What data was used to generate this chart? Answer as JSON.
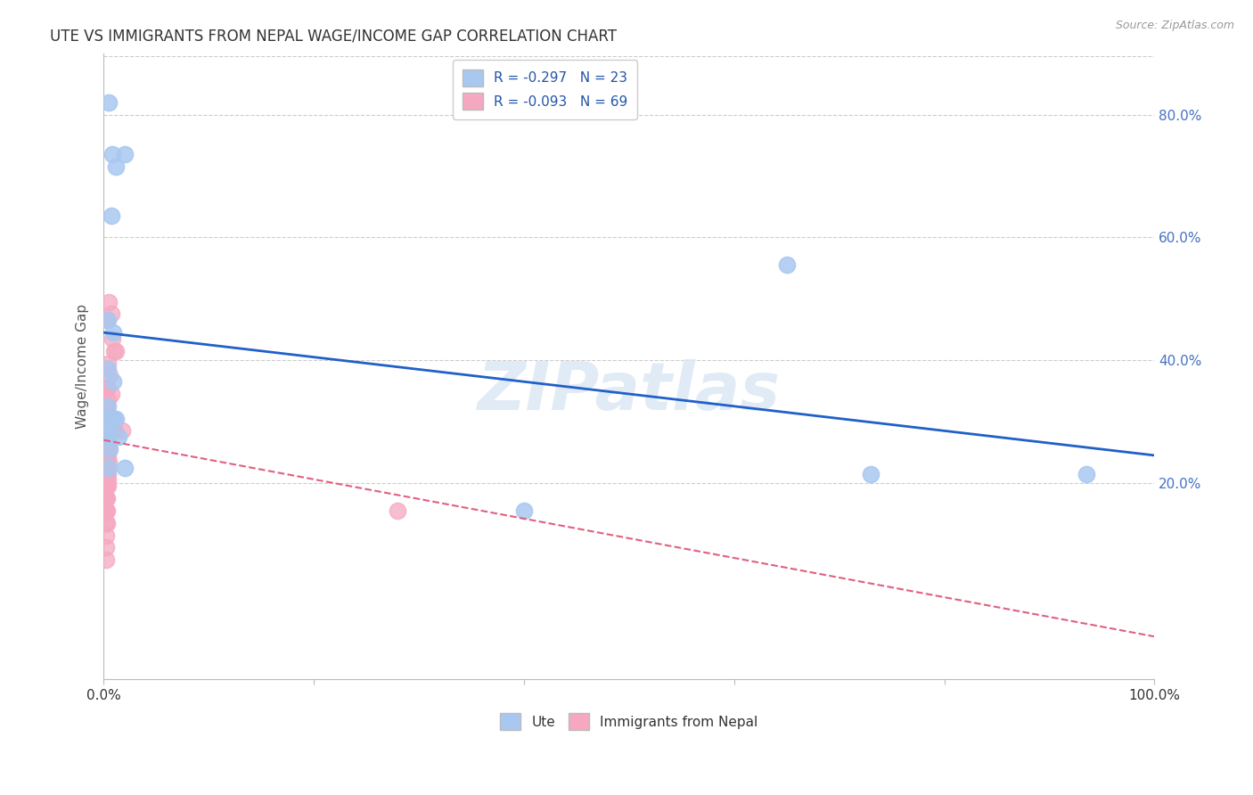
{
  "title": "UTE VS IMMIGRANTS FROM NEPAL WAGE/INCOME GAP CORRELATION CHART",
  "source": "Source: ZipAtlas.com",
  "ylabel": "Wage/Income Gap",
  "watermark": "ZIPatlas",
  "blue_label": "Ute",
  "pink_label": "Immigrants from Nepal",
  "blue_R": -0.297,
  "blue_N": 23,
  "pink_R": -0.093,
  "pink_N": 69,
  "xlim": [
    0.0,
    1.0
  ],
  "ylim": [
    -0.12,
    0.9
  ],
  "xticks": [
    0.0,
    0.2,
    0.4,
    0.6,
    0.8,
    1.0
  ],
  "xticklabels": [
    "0.0%",
    "",
    "",
    "",
    "",
    "100.0%"
  ],
  "yticks": [
    0.2,
    0.4,
    0.6,
    0.8
  ],
  "yticklabels": [
    "20.0%",
    "40.0%",
    "60.0%",
    "80.0%"
  ],
  "blue_color": "#A8C8F0",
  "pink_color": "#F5A8C0",
  "blue_line_color": "#2060C8",
  "pink_line_color": "#E06080",
  "background": "#FFFFFF",
  "grid_color": "#CCCCCC",
  "blue_line": [
    [
      0.0,
      0.445
    ],
    [
      1.0,
      0.245
    ]
  ],
  "pink_line": [
    [
      0.0,
      0.27
    ],
    [
      1.0,
      -0.05
    ]
  ],
  "blue_points": [
    [
      0.005,
      0.82
    ],
    [
      0.008,
      0.735
    ],
    [
      0.012,
      0.715
    ],
    [
      0.02,
      0.735
    ],
    [
      0.007,
      0.635
    ],
    [
      0.004,
      0.465
    ],
    [
      0.009,
      0.445
    ],
    [
      0.004,
      0.385
    ],
    [
      0.009,
      0.365
    ],
    [
      0.004,
      0.325
    ],
    [
      0.005,
      0.305
    ],
    [
      0.008,
      0.305
    ],
    [
      0.012,
      0.305
    ],
    [
      0.004,
      0.285
    ],
    [
      0.004,
      0.275
    ],
    [
      0.014,
      0.275
    ],
    [
      0.006,
      0.255
    ],
    [
      0.005,
      0.225
    ],
    [
      0.02,
      0.225
    ],
    [
      0.65,
      0.555
    ],
    [
      0.4,
      0.155
    ],
    [
      0.73,
      0.215
    ],
    [
      0.935,
      0.215
    ]
  ],
  "pink_points": [
    [
      0.005,
      0.495
    ],
    [
      0.007,
      0.475
    ],
    [
      0.003,
      0.465
    ],
    [
      0.008,
      0.435
    ],
    [
      0.01,
      0.415
    ],
    [
      0.012,
      0.415
    ],
    [
      0.004,
      0.395
    ],
    [
      0.006,
      0.375
    ],
    [
      0.003,
      0.355
    ],
    [
      0.004,
      0.355
    ],
    [
      0.007,
      0.345
    ],
    [
      0.004,
      0.335
    ],
    [
      0.002,
      0.325
    ],
    [
      0.002,
      0.315
    ],
    [
      0.003,
      0.315
    ],
    [
      0.003,
      0.305
    ],
    [
      0.005,
      0.305
    ],
    [
      0.003,
      0.295
    ],
    [
      0.002,
      0.295
    ],
    [
      0.002,
      0.285
    ],
    [
      0.003,
      0.285
    ],
    [
      0.004,
      0.285
    ],
    [
      0.006,
      0.285
    ],
    [
      0.009,
      0.285
    ],
    [
      0.002,
      0.275
    ],
    [
      0.003,
      0.275
    ],
    [
      0.004,
      0.275
    ],
    [
      0.002,
      0.268
    ],
    [
      0.002,
      0.265
    ],
    [
      0.003,
      0.265
    ],
    [
      0.004,
      0.265
    ],
    [
      0.002,
      0.255
    ],
    [
      0.003,
      0.255
    ],
    [
      0.005,
      0.255
    ],
    [
      0.002,
      0.245
    ],
    [
      0.002,
      0.245
    ],
    [
      0.003,
      0.245
    ],
    [
      0.004,
      0.245
    ],
    [
      0.002,
      0.235
    ],
    [
      0.002,
      0.235
    ],
    [
      0.003,
      0.235
    ],
    [
      0.005,
      0.235
    ],
    [
      0.002,
      0.225
    ],
    [
      0.002,
      0.225
    ],
    [
      0.003,
      0.225
    ],
    [
      0.002,
      0.215
    ],
    [
      0.003,
      0.215
    ],
    [
      0.004,
      0.215
    ],
    [
      0.002,
      0.205
    ],
    [
      0.003,
      0.205
    ],
    [
      0.004,
      0.205
    ],
    [
      0.002,
      0.195
    ],
    [
      0.003,
      0.195
    ],
    [
      0.004,
      0.195
    ],
    [
      0.002,
      0.175
    ],
    [
      0.002,
      0.175
    ],
    [
      0.003,
      0.175
    ],
    [
      0.002,
      0.155
    ],
    [
      0.002,
      0.155
    ],
    [
      0.003,
      0.155
    ],
    [
      0.002,
      0.135
    ],
    [
      0.003,
      0.135
    ],
    [
      0.002,
      0.115
    ],
    [
      0.002,
      0.095
    ],
    [
      0.002,
      0.075
    ],
    [
      0.01,
      0.305
    ],
    [
      0.011,
      0.285
    ],
    [
      0.018,
      0.285
    ],
    [
      0.28,
      0.155
    ]
  ]
}
